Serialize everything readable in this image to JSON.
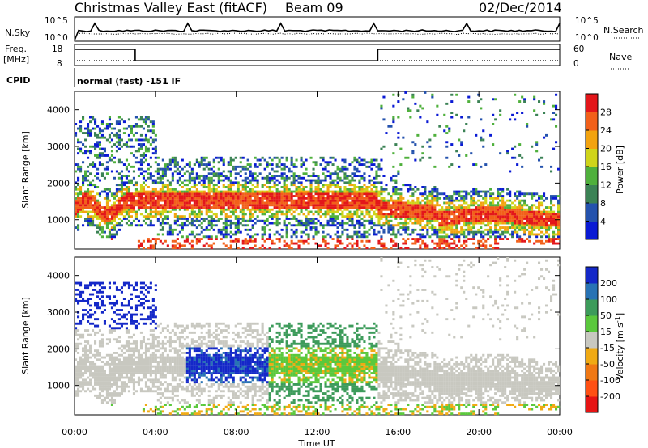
{
  "header": {
    "station": "Christmas Valley East (fitACF)",
    "beam": "Beam 09",
    "date": "02/Dec/2014"
  },
  "panels_top": {
    "nsky_label": "N.Sky",
    "nsky_ticks": [
      "10^5",
      "10^0"
    ],
    "nsearch_label": "N.Search",
    "nsearch_ticks": [
      "10^5",
      "10^0"
    ],
    "freq_label": "Freq.",
    "freq_unit": "[MHz]",
    "freq_ticks": [
      "18",
      "8"
    ],
    "nave_label": "Nave",
    "nave_ticks": [
      "60",
      "0"
    ],
    "cpid_label": "CPID",
    "cpid_text": "normal (fast) -151 IF"
  },
  "chart_data": [
    {
      "type": "heatmap",
      "name": "power",
      "ylabel": "Slant Range [km]",
      "xlabel": "",
      "yticks": [
        "1000",
        "2000",
        "3000",
        "4000"
      ],
      "ylim": [
        200,
        4500
      ],
      "colorbar_label": "Power [dB]",
      "colorbar_ticks": [
        "4",
        "8",
        "12",
        "16",
        "20",
        "24",
        "28"
      ],
      "colorbar_range": [
        0,
        32
      ],
      "colorbar_colors": [
        "#0a1ad4",
        "#2452ad",
        "#3b8255",
        "#4fb03c",
        "#cfd41a",
        "#f2a30f",
        "#f2601a",
        "#e3161a"
      ]
    },
    {
      "type": "heatmap",
      "name": "velocity",
      "ylabel": "Slant Range [km]",
      "xlabel": "Time UT",
      "yticks": [
        "1000",
        "2000",
        "3000",
        "4000"
      ],
      "ylim": [
        200,
        4500
      ],
      "xticks": [
        "00:00",
        "04:00",
        "08:00",
        "12:00",
        "16:00",
        "20:00",
        "00:00"
      ],
      "xlim_hours": [
        0,
        24
      ],
      "colorbar_label": "Velocity [m s",
      "colorbar_label_sup": "-1",
      "colorbar_label_end": "]",
      "colorbar_ticks": [
        "200",
        "100",
        "50",
        "15",
        "-15",
        "-50",
        "-100",
        "-200"
      ],
      "colorbar_colors": [
        "#1428c8",
        "#2873b4",
        "#3c9b5a",
        "#5ac83c",
        "#c8c8c0",
        "#f0aa14",
        "#f07814",
        "#ff5014",
        "#e61414"
      ]
    }
  ]
}
